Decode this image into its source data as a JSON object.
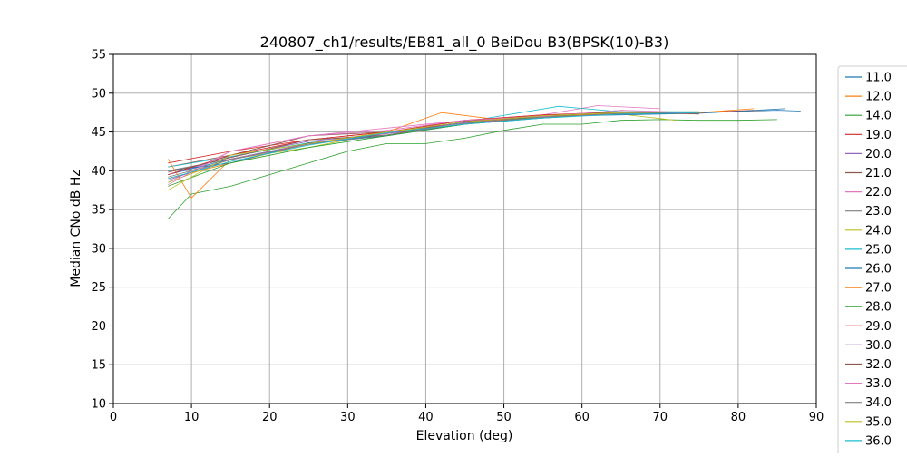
{
  "chart_data": {
    "type": "line",
    "title": "240807_ch1/results/EB81_all_0 BeiDou B3(BPSK(10)-B3)",
    "xlabel": "Elevation (deg)",
    "ylabel": "Median CNo dB Hz",
    "xlim": [
      0,
      90
    ],
    "ylim": [
      10,
      55
    ],
    "xticks": [
      "0",
      "10",
      "20",
      "30",
      "40",
      "50",
      "60",
      "70",
      "80",
      "90"
    ],
    "yticks": [
      "10",
      "15",
      "20",
      "25",
      "30",
      "35",
      "40",
      "45",
      "50",
      "55"
    ],
    "grid": true,
    "legend_position": "right (outside, clipped)",
    "series": [
      {
        "name": "11.0",
        "color": "#1f77b4",
        "x": [
          7,
          15,
          25,
          35,
          45,
          55,
          65,
          75,
          85,
          88
        ],
        "y": [
          39.5,
          41.5,
          43.5,
          44.5,
          46.0,
          46.8,
          47.5,
          47.5,
          47.8,
          47.7
        ]
      },
      {
        "name": "12.0",
        "color": "#ff7f0e",
        "x": [
          7,
          15,
          25,
          35,
          45,
          55,
          65,
          75,
          83
        ],
        "y": [
          39.0,
          41.0,
          43.5,
          44.8,
          46.3,
          47.0,
          47.4,
          47.5,
          47.8
        ]
      },
      {
        "name": "14.0",
        "color": "#2ca02c",
        "x": [
          7,
          10,
          15,
          20,
          25,
          30,
          35,
          40,
          45,
          50,
          55,
          60,
          65,
          70,
          75,
          80,
          85
        ],
        "y": [
          33.8,
          37.0,
          38.0,
          39.5,
          41.0,
          42.5,
          43.5,
          43.5,
          44.2,
          45.2,
          46.0,
          46.0,
          46.5,
          46.6,
          46.5,
          46.5,
          46.6
        ]
      },
      {
        "name": "19.0",
        "color": "#d62728",
        "x": [
          7,
          15,
          25,
          35,
          45,
          55,
          65,
          75,
          82
        ],
        "y": [
          41.0,
          42.5,
          44.0,
          45.0,
          46.3,
          47.0,
          47.5,
          47.5,
          47.8
        ]
      },
      {
        "name": "20.0",
        "color": "#9467bd",
        "x": [
          7,
          15,
          25,
          35,
          45,
          55,
          65,
          75
        ],
        "y": [
          39.5,
          41.8,
          43.8,
          44.8,
          46.0,
          47.0,
          47.5,
          47.5
        ]
      },
      {
        "name": "21.0",
        "color": "#8c564b",
        "x": [
          7,
          15,
          25,
          35,
          45,
          55,
          65,
          75
        ],
        "y": [
          40.5,
          42.0,
          44.5,
          45.0,
          46.5,
          47.0,
          47.3,
          47.4
        ]
      },
      {
        "name": "22.0",
        "color": "#e377c2",
        "x": [
          7,
          15,
          25,
          35,
          45,
          55,
          62,
          70
        ],
        "y": [
          38.5,
          42.5,
          44.5,
          45.2,
          46.5,
          47.2,
          48.4,
          48.0
        ]
      },
      {
        "name": "23.0",
        "color": "#7f7f7f",
        "x": [
          7,
          15,
          25,
          35,
          45,
          55,
          65,
          75
        ],
        "y": [
          40.0,
          41.5,
          43.5,
          45.0,
          46.2,
          47.0,
          47.4,
          47.4
        ]
      },
      {
        "name": "24.0",
        "color": "#bcbd22",
        "x": [
          7,
          15,
          25,
          35,
          45,
          55,
          65,
          72
        ],
        "y": [
          38.5,
          41.5,
          43.0,
          45.0,
          46.0,
          47.0,
          47.3,
          46.5
        ]
      },
      {
        "name": "25.0",
        "color": "#17becf",
        "x": [
          7,
          15,
          25,
          35,
          45,
          57,
          65,
          75
        ],
        "y": [
          40.5,
          41.8,
          43.6,
          44.6,
          46.3,
          48.3,
          47.6,
          47.6
        ]
      },
      {
        "name": "26.0",
        "color": "#1f77b4",
        "x": [
          7,
          15,
          25,
          35,
          45,
          55,
          65,
          75,
          86
        ],
        "y": [
          40.0,
          41.0,
          43.6,
          44.6,
          46.0,
          47.0,
          47.2,
          47.4,
          48.0
        ]
      },
      {
        "name": "27.0",
        "color": "#ff7f0e",
        "x": [
          7,
          10,
          15,
          25,
          35,
          42,
          50,
          55,
          65,
          75,
          82
        ],
        "y": [
          41.5,
          36.5,
          41.5,
          43.5,
          45.0,
          47.5,
          46.5,
          47.0,
          47.4,
          47.5,
          48.0
        ]
      },
      {
        "name": "28.0",
        "color": "#2ca02c",
        "x": [
          7,
          15,
          25,
          35,
          45,
          55,
          65,
          75
        ],
        "y": [
          38.0,
          41.0,
          43.0,
          44.5,
          46.0,
          47.0,
          47.6,
          47.6
        ]
      },
      {
        "name": "29.0",
        "color": "#d62728",
        "x": [
          7,
          15,
          25,
          35,
          45,
          55,
          65,
          75
        ],
        "y": [
          39.5,
          42.0,
          44.0,
          45.0,
          46.5,
          47.2,
          47.6,
          47.4
        ]
      },
      {
        "name": "30.0",
        "color": "#9467bd",
        "x": [
          7,
          15,
          25,
          35,
          45,
          55,
          65,
          75
        ],
        "y": [
          38.8,
          41.5,
          43.5,
          44.8,
          46.2,
          46.8,
          47.4,
          47.5
        ]
      },
      {
        "name": "32.0",
        "color": "#8c564b",
        "x": [
          7,
          15,
          25,
          35,
          45,
          55,
          65,
          75
        ],
        "y": [
          39.8,
          41.7,
          44.0,
          44.6,
          46.4,
          47.1,
          47.6,
          47.3
        ]
      },
      {
        "name": "33.0",
        "color": "#e377c2",
        "x": [
          7,
          15,
          25,
          35,
          45,
          55,
          65,
          75
        ],
        "y": [
          38.2,
          42.5,
          44.5,
          45.5,
          46.5,
          47.0,
          47.8,
          47.5
        ]
      },
      {
        "name": "34.0",
        "color": "#7f7f7f",
        "x": [
          7,
          15,
          25,
          35,
          45,
          55,
          65,
          75
        ],
        "y": [
          39.2,
          41.4,
          43.4,
          44.6,
          46.1,
          46.9,
          47.4,
          47.4
        ]
      },
      {
        "name": "35.0",
        "color": "#bcbd22",
        "x": [
          7,
          15,
          25,
          35,
          45,
          55,
          65,
          75
        ],
        "y": [
          37.5,
          42.0,
          43.5,
          45.0,
          46.3,
          47.1,
          47.5,
          47.6
        ]
      },
      {
        "name": "36.0",
        "color": "#17becf",
        "x": [
          7,
          15,
          25,
          35,
          45,
          55,
          65,
          75
        ],
        "y": [
          39.0,
          41.2,
          43.3,
          44.9,
          46.0,
          46.8,
          47.3,
          47.5
        ]
      }
    ]
  }
}
